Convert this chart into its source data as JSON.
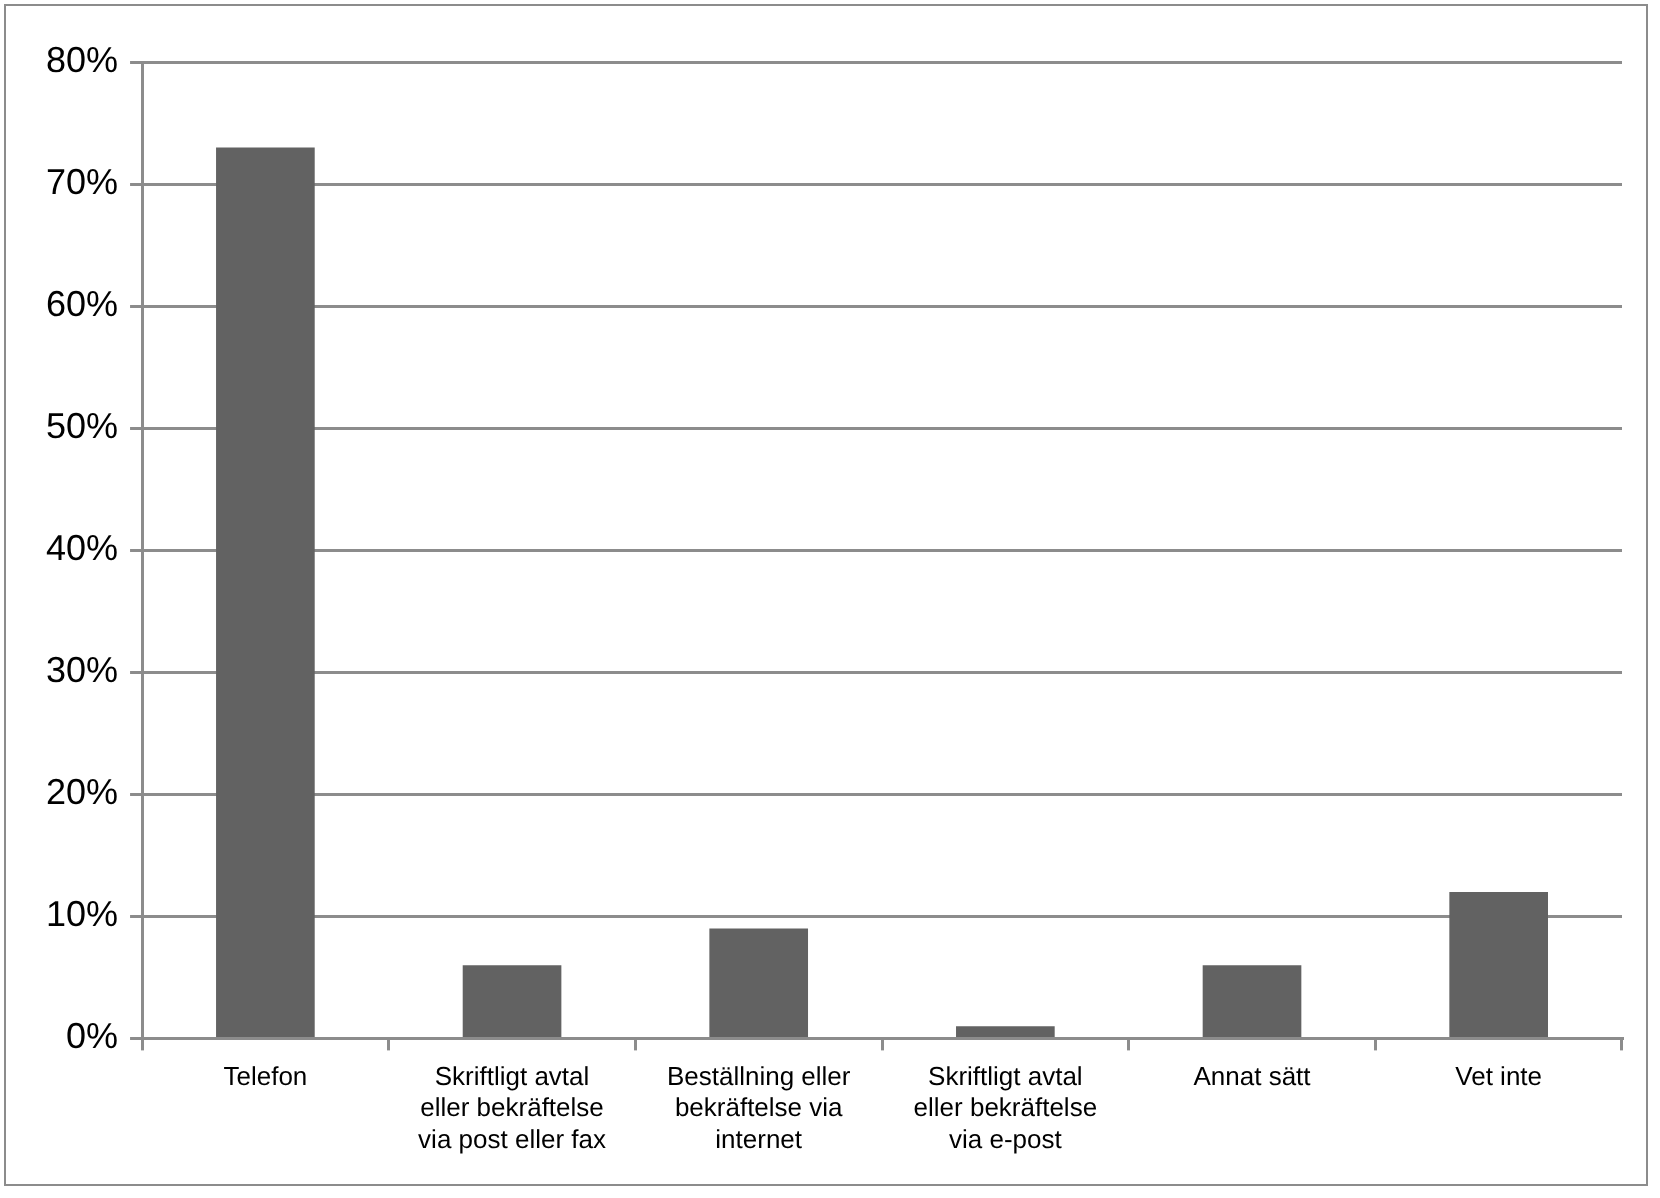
{
  "chart_data": {
    "type": "bar",
    "categories": [
      "Telefon",
      "Skriftligt avtal eller bekräftelse via post eller fax",
      "Beställning eller bekräftelse via internet",
      "Skriftligt avtal eller bekräftelse via e-post",
      "Annat sätt",
      "Vet inte"
    ],
    "values": [
      73,
      6,
      9,
      1,
      6,
      12
    ],
    "color": "#626262",
    "ylim": [
      0,
      80
    ],
    "yticks": [
      {
        "value": 0,
        "label": "0%"
      },
      {
        "value": 10,
        "label": "10%"
      },
      {
        "value": 20,
        "label": "20%"
      },
      {
        "value": 30,
        "label": "30%"
      },
      {
        "value": 40,
        "label": "40%"
      },
      {
        "value": 50,
        "label": "50%"
      },
      {
        "value": 60,
        "label": "60%"
      },
      {
        "value": 70,
        "label": "70%"
      },
      {
        "value": 80,
        "label": "80%"
      }
    ],
    "grid": "y",
    "legend": false
  }
}
